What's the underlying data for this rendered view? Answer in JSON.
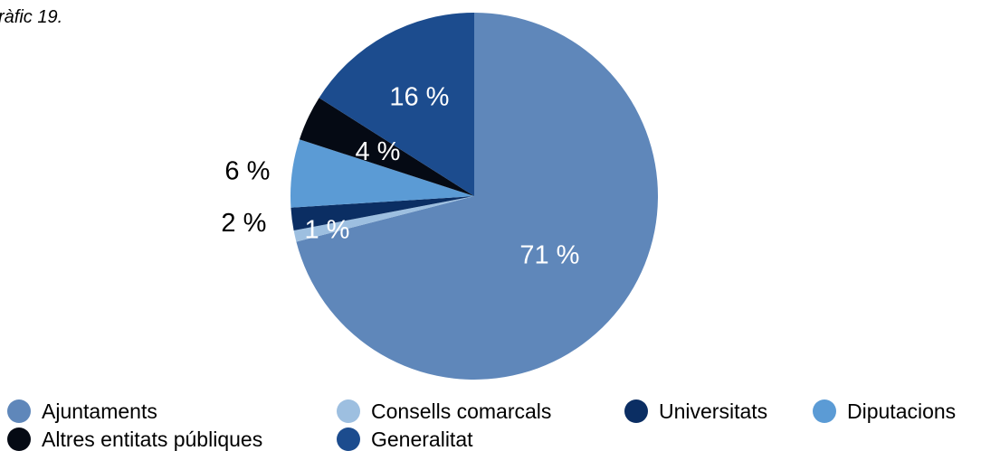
{
  "caption": "ràfic 19.",
  "chart_data": {
    "type": "pie",
    "title": "",
    "start_angle_deg": 0,
    "direction": "clockwise",
    "slices": [
      {
        "name": "Ajuntaments",
        "value": 71,
        "label": "71 %",
        "color": "#5F87BA",
        "label_color": "#ffffff"
      },
      {
        "name": "Consells comarcals",
        "value": 1,
        "label": "1 %",
        "color": "#9DBFE0",
        "label_color": "#ffffff"
      },
      {
        "name": "Universitats",
        "value": 2,
        "label": "2 %",
        "color": "#0B2E63",
        "label_color": "#000000"
      },
      {
        "name": "Diputacions",
        "value": 6,
        "label": "6 %",
        "color": "#5B9BD5",
        "label_color": "#000000"
      },
      {
        "name": "Altres entitats públiques",
        "value": 4,
        "label": "4 %",
        "color": "#050A14",
        "label_color": "#ffffff"
      },
      {
        "name": "Generalitat",
        "value": 16,
        "label": "16 %",
        "color": "#1C4C8E",
        "label_color": "#ffffff"
      }
    ],
    "legend": {
      "position": "bottom",
      "row1": [
        "Ajuntaments",
        "Consells comarcals",
        "Universitats",
        "Diputacions"
      ],
      "row2": [
        "Altres entitats públiques",
        "Generalitat"
      ]
    }
  }
}
